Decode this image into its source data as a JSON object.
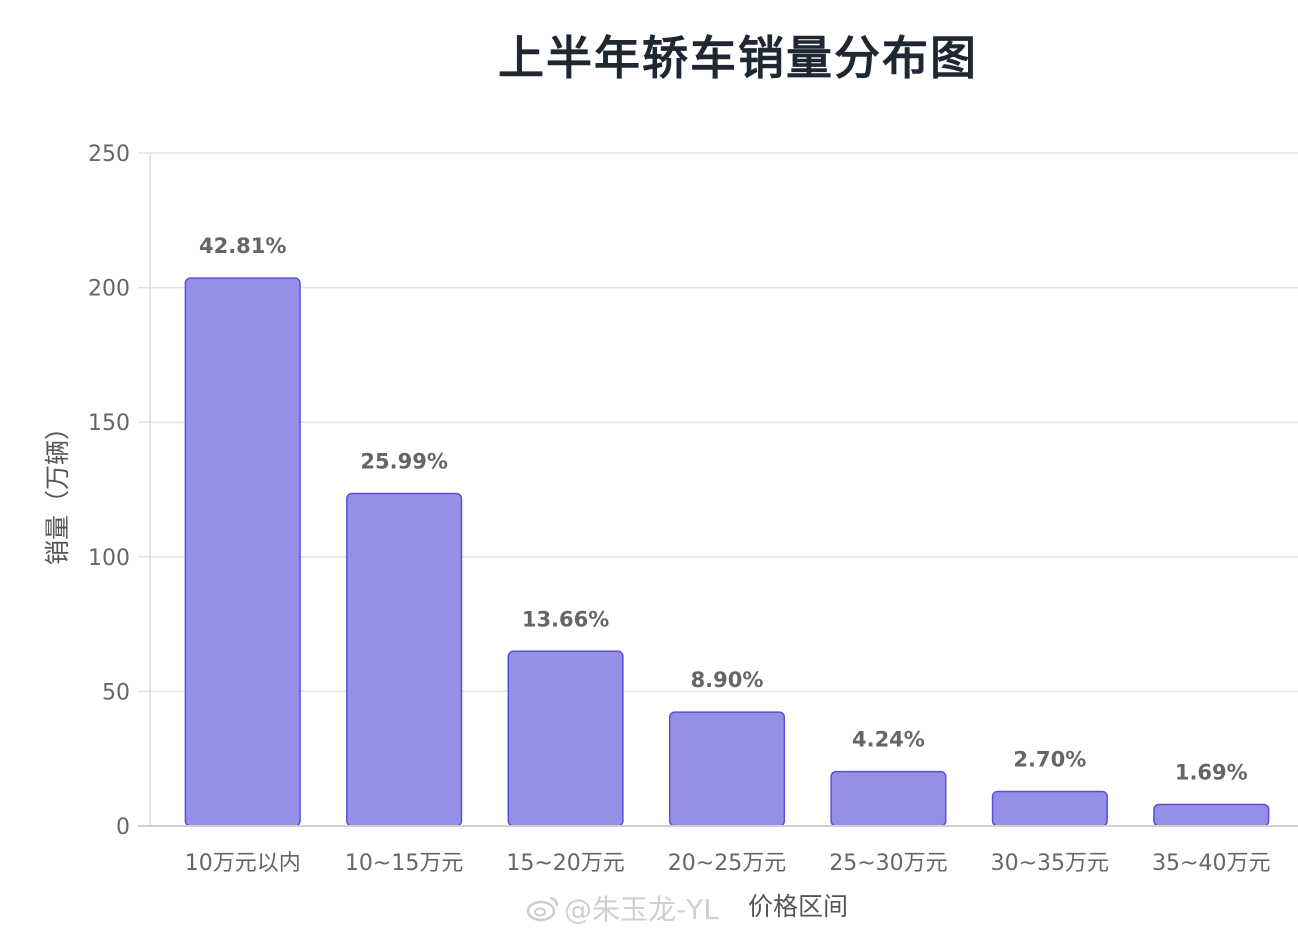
{
  "chart_data": {
    "type": "bar",
    "title": "上半年轿车销量分布图",
    "xlabel": "价格区间",
    "ylabel": "销量（万辆）",
    "ylim": [
      0,
      250
    ],
    "yticks": [
      0,
      50,
      100,
      150,
      200,
      250
    ],
    "grid": true,
    "categories": [
      "10万元以内",
      "10~15万元",
      "15~20万元",
      "20~25万元",
      "25~30万元",
      "30~35万元",
      "35~40万元"
    ],
    "values": [
      203.5,
      123.5,
      64.9,
      42.3,
      20.2,
      12.8,
      8.0
    ],
    "data_labels": [
      "42.81%",
      "25.99%",
      "13.66%",
      "8.90%",
      "4.24%",
      "2.70%",
      "1.69%"
    ],
    "colors": {
      "bar_fill": "#9490e8",
      "bar_stroke": "#5b4fd6",
      "grid": "#e3e3e3",
      "text": "#666666"
    }
  },
  "watermark": {
    "text": "@朱玉龙-YL",
    "icon": "weibo-logo-icon"
  }
}
